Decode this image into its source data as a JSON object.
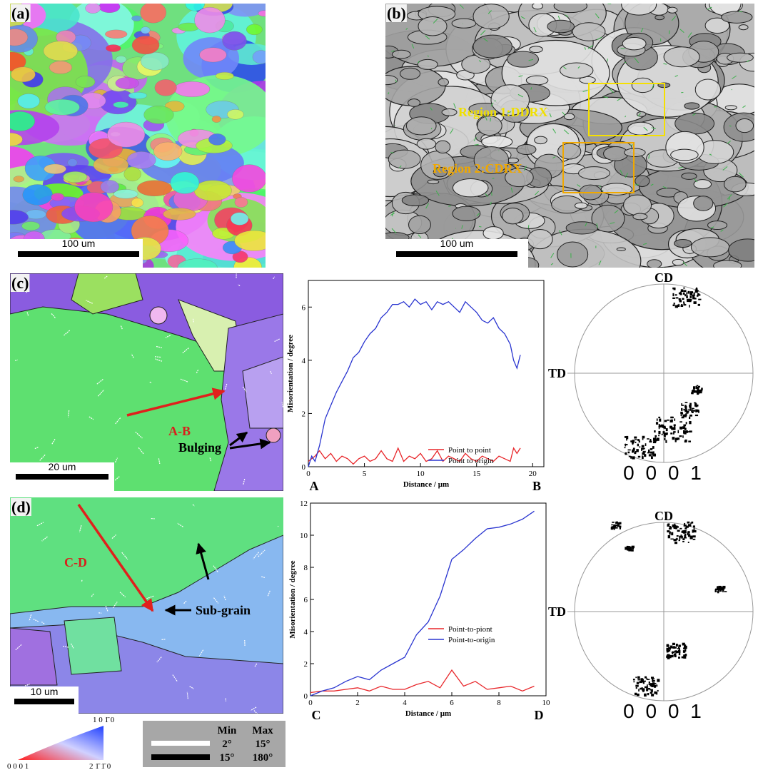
{
  "panels": {
    "a": {
      "label": "(a)",
      "scale_bar": "100 um"
    },
    "b": {
      "label": "(b)",
      "scale_bar": "100 um",
      "regions": [
        "Region 1:DDRX",
        "Region 2:CDRX"
      ]
    },
    "c": {
      "label": "(c)",
      "scale_bar": "20 um",
      "annotations": [
        "A-B",
        "Bulging"
      ]
    },
    "d": {
      "label": "(d)",
      "scale_bar": "10 um",
      "annotations": [
        "C-D",
        "Sub-grain"
      ]
    }
  },
  "chart_data": [
    {
      "type": "line",
      "x_label": "Distance / μm",
      "y_label": "Misorientation / degree",
      "start_label": "A",
      "end_label": "B",
      "x": [
        0,
        0.3,
        0.6,
        1,
        1.5,
        2,
        2.5,
        3,
        3.5,
        4,
        4.5,
        5,
        5.5,
        6,
        6.5,
        7,
        7.5,
        8,
        8.5,
        9,
        9.5,
        10,
        10.5,
        11,
        11.5,
        12,
        12.5,
        13,
        13.5,
        14,
        14.5,
        15,
        15.5,
        16,
        16.5,
        17,
        17.5,
        18,
        18.3,
        18.6,
        18.9
      ],
      "xlim": [
        0,
        21
      ],
      "xticks": [
        0,
        5,
        10,
        15,
        20
      ],
      "ylim": [
        0,
        7
      ],
      "yticks": [
        0,
        2,
        4,
        6
      ],
      "series": [
        {
          "name": "Point to point",
          "color": "#e8262a",
          "values": [
            0.2,
            0.3,
            0.4,
            0.6,
            0.3,
            0.5,
            0.2,
            0.4,
            0.3,
            0.1,
            0.3,
            0.4,
            0.2,
            0.3,
            0.6,
            0.3,
            0.2,
            0.7,
            0.2,
            0.4,
            0.3,
            0.5,
            0.2,
            0.3,
            0.6,
            0.2,
            0.4,
            0.3,
            0.2,
            0.5,
            0.3,
            0.2,
            0.4,
            0.3,
            0.2,
            0.4,
            0.3,
            0.2,
            0.7,
            0.5,
            0.7
          ]
        },
        {
          "name": "Point to origin",
          "color": "#2a35d0",
          "values": [
            0,
            0.4,
            0.2,
            0.8,
            1.8,
            2.3,
            2.8,
            3.2,
            3.6,
            4.1,
            4.3,
            4.7,
            5.0,
            5.2,
            5.6,
            5.8,
            6.1,
            6.1,
            6.2,
            6.0,
            6.3,
            6.1,
            6.2,
            5.9,
            6.2,
            6.1,
            6.2,
            6.0,
            5.8,
            6.2,
            6.0,
            5.8,
            5.5,
            5.4,
            5.6,
            5.2,
            5.0,
            4.6,
            4.0,
            3.7,
            4.2
          ]
        }
      ]
    },
    {
      "type": "line",
      "x_label": "Distance / μm",
      "y_label": "Misorientation / degree",
      "start_label": "C",
      "end_label": "D",
      "x": [
        0,
        0.5,
        1,
        1.5,
        2,
        2.5,
        3,
        3.5,
        4,
        4.5,
        5,
        5.5,
        6,
        6.5,
        7,
        7.5,
        8,
        8.5,
        9,
        9.5
      ],
      "xlim": [
        0,
        10
      ],
      "xticks": [
        0,
        2,
        4,
        6,
        8,
        10
      ],
      "ylim": [
        0,
        12
      ],
      "yticks": [
        0,
        2,
        4,
        6,
        8,
        10,
        12
      ],
      "series": [
        {
          "name": "Point-to-piont",
          "color": "#e8262a",
          "values": [
            0.2,
            0.3,
            0.3,
            0.4,
            0.5,
            0.3,
            0.6,
            0.4,
            0.4,
            0.7,
            0.9,
            0.5,
            1.6,
            0.6,
            0.9,
            0.4,
            0.5,
            0.6,
            0.3,
            0.6
          ]
        },
        {
          "name": "Point-to-origin",
          "color": "#2a35d0",
          "values": [
            0,
            0.3,
            0.5,
            0.9,
            1.2,
            1.0,
            1.6,
            2.0,
            2.4,
            3.8,
            4.6,
            6.2,
            8.5,
            9.1,
            9.8,
            10.4,
            10.5,
            10.7,
            11.0,
            11.5
          ]
        }
      ]
    }
  ],
  "pole_figures": [
    {
      "top": "CD",
      "left": "TD",
      "plane": "0 0 0 1"
    },
    {
      "top": "CD",
      "left": "TD",
      "plane": "0 0 0 1"
    }
  ],
  "ipf_legend": {
    "corners": [
      "1 0 1̄ 0",
      "0 0 0 1",
      "2 1̄ 1̄ 0"
    ]
  },
  "boundary_legend": {
    "header": [
      "Min",
      "Max"
    ],
    "rows": [
      [
        "2°",
        "15°"
      ],
      [
        "15°",
        "180°"
      ]
    ]
  }
}
